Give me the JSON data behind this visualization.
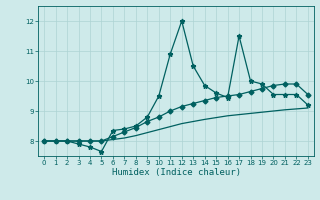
{
  "xlabel": "Humidex (Indice chaleur)",
  "bg_color": "#ceeaea",
  "grid_color": "#aed4d4",
  "line_color": "#006060",
  "xlim": [
    -0.5,
    23.5
  ],
  "ylim": [
    7.5,
    12.5
  ],
  "yticks": [
    8,
    9,
    10,
    11,
    12
  ],
  "xticks": [
    0,
    1,
    2,
    3,
    4,
    5,
    6,
    7,
    8,
    9,
    10,
    11,
    12,
    13,
    14,
    15,
    16,
    17,
    18,
    19,
    20,
    21,
    22,
    23
  ],
  "s1_x": [
    0,
    1,
    2,
    3,
    4,
    5,
    6,
    7,
    8,
    9,
    10,
    11,
    12,
    13,
    14,
    15,
    16,
    17,
    18,
    19,
    20,
    21,
    22,
    23
  ],
  "s1_y": [
    8.0,
    8.0,
    8.0,
    7.9,
    7.8,
    7.65,
    8.35,
    8.4,
    8.5,
    8.8,
    9.5,
    10.9,
    12.0,
    10.5,
    9.85,
    9.6,
    9.45,
    11.5,
    10.0,
    9.9,
    9.55,
    9.55,
    9.55,
    9.2
  ],
  "s2_x": [
    0,
    1,
    2,
    3,
    4,
    5,
    6,
    7,
    8,
    9,
    10,
    11,
    12,
    13,
    14,
    15,
    16,
    17,
    18,
    19,
    20,
    21,
    22,
    23
  ],
  "s2_y": [
    8.0,
    8.0,
    8.0,
    8.0,
    8.0,
    8.0,
    8.15,
    8.3,
    8.45,
    8.65,
    8.8,
    9.0,
    9.15,
    9.25,
    9.35,
    9.45,
    9.5,
    9.55,
    9.65,
    9.75,
    9.85,
    9.9,
    9.9,
    9.55
  ],
  "s3_x": [
    0,
    1,
    2,
    3,
    4,
    5,
    6,
    7,
    8,
    9,
    10,
    11,
    12,
    13,
    14,
    15,
    16,
    17,
    18,
    19,
    20,
    21,
    22,
    23
  ],
  "s3_y": [
    8.0,
    8.0,
    8.0,
    8.0,
    8.0,
    8.0,
    8.05,
    8.1,
    8.18,
    8.28,
    8.38,
    8.48,
    8.58,
    8.65,
    8.72,
    8.78,
    8.84,
    8.88,
    8.92,
    8.96,
    9.0,
    9.04,
    9.07,
    9.1
  ],
  "lw": 0.9,
  "ms1": 3.5,
  "ms2": 2.5
}
